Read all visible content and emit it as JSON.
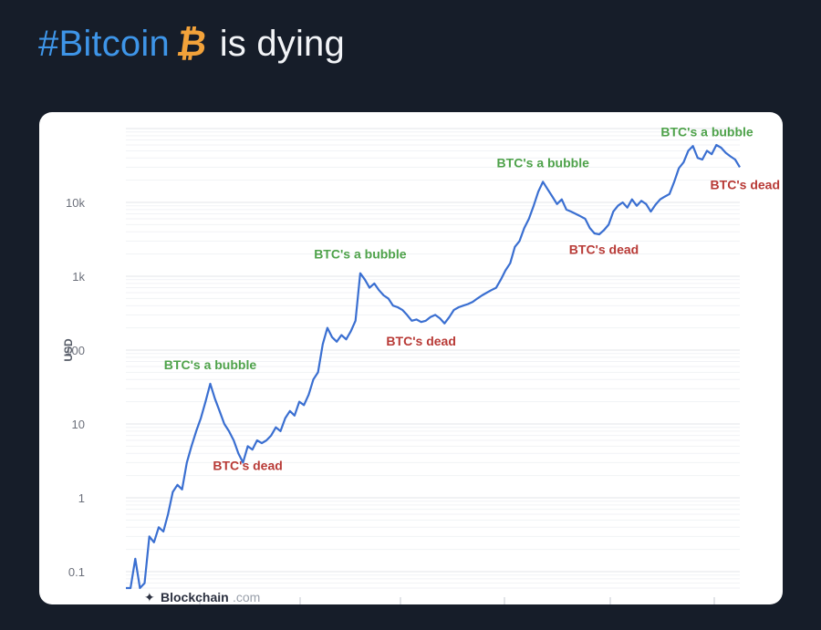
{
  "tweet": {
    "hashtag": "#Bitcoin",
    "emoji_icon": "bitcoin-icon",
    "emoji_char": "₿",
    "rest_text": "is dying"
  },
  "colors": {
    "background": "#161d29",
    "hashtag": "#3e95e8",
    "bitcoin_orange": "#f2a23a",
    "line": "#3a6fd1",
    "annotation_bubble": "#4ea24a",
    "annotation_dead": "#b83a36"
  },
  "watermark": {
    "brand": "Blockchain",
    "suffix": ".com",
    "icon": "blockchain-logo-icon"
  },
  "chart_data": {
    "type": "line",
    "scale": "log",
    "title": "",
    "xlabel": "",
    "ylabel": "USD",
    "yticks": [
      {
        "value": 10000,
        "label": "10k"
      },
      {
        "value": 1000,
        "label": "1k"
      },
      {
        "value": 100,
        "label": "100"
      },
      {
        "value": 10,
        "label": "10"
      },
      {
        "value": 1,
        "label": "1"
      },
      {
        "value": 0.1,
        "label": "0.1"
      }
    ],
    "ylim": [
      0.06,
      100000
    ],
    "x_tick_count": 6,
    "grid": true,
    "series": [
      {
        "values": [
          0.06,
          0.06,
          0.15,
          0.06,
          0.07,
          0.3,
          0.25,
          0.4,
          0.35,
          0.6,
          1.2,
          1.5,
          1.3,
          3,
          5,
          8,
          12,
          20,
          35,
          22,
          15,
          10,
          8,
          6,
          4,
          3,
          5,
          4.5,
          6,
          5.5,
          6,
          7,
          9,
          8,
          12,
          15,
          13,
          20,
          18,
          25,
          40,
          50,
          120,
          200,
          150,
          130,
          160,
          140,
          180,
          250,
          1100,
          900,
          700,
          800,
          650,
          550,
          500,
          400,
          380,
          350,
          300,
          250,
          260,
          240,
          250,
          280,
          300,
          270,
          230,
          280,
          350,
          380,
          400,
          420,
          450,
          500,
          550,
          600,
          650,
          700,
          900,
          1200,
          1500,
          2500,
          3000,
          4500,
          6000,
          9000,
          14000,
          19000,
          15000,
          12000,
          9500,
          11000,
          8000,
          7500,
          7000,
          6500,
          6000,
          4500,
          3800,
          3700,
          4200,
          5000,
          7500,
          9000,
          10000,
          8500,
          11000,
          9000,
          10500,
          9500,
          7500,
          9300,
          11000,
          12000,
          13000,
          19000,
          29000,
          35000,
          50000,
          58000,
          40000,
          38000,
          50000,
          45000,
          60000,
          55000,
          47000,
          42000,
          38000,
          30000
        ],
        "color": "#3a6fd1"
      }
    ],
    "annotations": [
      {
        "text": "BTC's a bubble",
        "kind": "bubble",
        "anchor": 18
      },
      {
        "text": "BTC's dead",
        "kind": "dead",
        "anchor": 26
      },
      {
        "text": "BTC's a bubble",
        "kind": "bubble",
        "anchor": 50
      },
      {
        "text": "BTC's dead",
        "kind": "dead",
        "anchor": 63
      },
      {
        "text": "BTC's a bubble",
        "kind": "bubble",
        "anchor": 89
      },
      {
        "text": "BTC's dead",
        "kind": "dead",
        "anchor": 102
      },
      {
        "text": "BTC's a bubble",
        "kind": "bubble",
        "anchor": 124
      },
      {
        "text": "BTC's dead",
        "kind": "dead",
        "anchor": 131
      }
    ]
  }
}
